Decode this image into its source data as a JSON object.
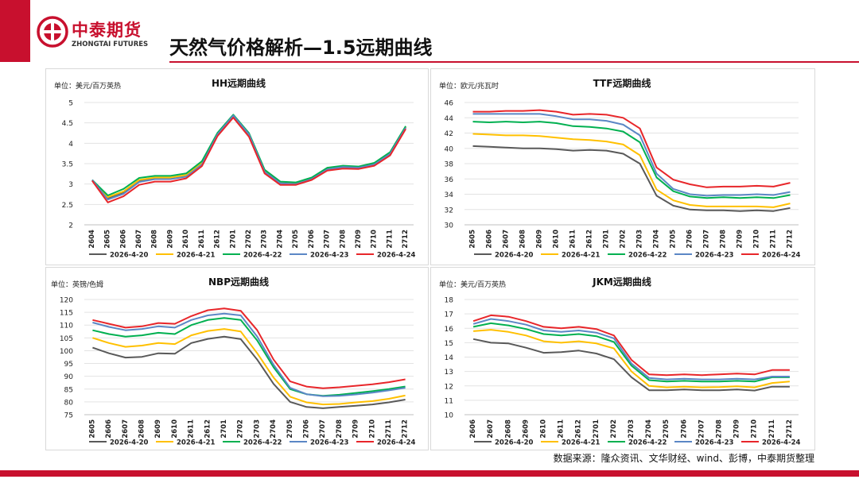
{
  "header": {
    "logo_cn": "中泰期货",
    "logo_en": "ZHONGTAI FUTURES",
    "title": "天然气价格解析—1.5远期曲线"
  },
  "footer": {
    "source": "数据来源：隆众资讯、文华财经、wind、彭博，中泰期货整理"
  },
  "colors": {
    "brand_red": "#c8102e",
    "series": [
      "#595959",
      "#ffc000",
      "#00b050",
      "#5b87c5",
      "#e8262a"
    ]
  },
  "chart_data": [
    {
      "id": "hh",
      "type": "line",
      "title": "HH远期曲线",
      "unit": "单位：美元/百万英热",
      "categories": [
        "2604",
        "2605",
        "2606",
        "2607",
        "2608",
        "2609",
        "2610",
        "2611",
        "2612",
        "2701",
        "2702",
        "2703",
        "2704",
        "2705",
        "2706",
        "2707",
        "2708",
        "2709",
        "2710",
        "2711",
        "2712"
      ],
      "ylim": [
        2,
        5
      ],
      "yticks": [
        2,
        2.5,
        3,
        3.5,
        4,
        4.5,
        5
      ],
      "ytick_labels": [
        "2",
        "2.5",
        "3",
        "3.5",
        "4",
        "4.5",
        "5"
      ],
      "series": [
        {
          "name": "2026-4-20",
          "values": [
            3.1,
            2.65,
            2.8,
            3.08,
            3.15,
            3.15,
            3.2,
            3.5,
            4.2,
            4.65,
            4.2,
            3.3,
            3.02,
            3.0,
            3.12,
            3.35,
            3.42,
            3.4,
            3.5,
            3.75,
            4.4
          ]
        },
        {
          "name": "2026-4-21",
          "values": [
            3.1,
            2.68,
            2.82,
            3.1,
            3.16,
            3.16,
            3.22,
            3.52,
            4.22,
            4.66,
            4.22,
            3.32,
            3.03,
            3.01,
            3.13,
            3.36,
            3.43,
            3.41,
            3.5,
            3.76,
            4.4
          ]
        },
        {
          "name": "2026-4-22",
          "values": [
            3.1,
            2.72,
            2.88,
            3.15,
            3.2,
            3.2,
            3.26,
            3.56,
            4.26,
            4.7,
            4.25,
            3.35,
            3.06,
            3.04,
            3.16,
            3.4,
            3.45,
            3.43,
            3.52,
            3.78,
            4.42
          ]
        },
        {
          "name": "2026-4-23",
          "values": [
            3.1,
            2.62,
            2.76,
            3.05,
            3.12,
            3.12,
            3.18,
            3.48,
            4.22,
            4.68,
            4.22,
            3.3,
            3.02,
            3.0,
            3.12,
            3.36,
            3.42,
            3.4,
            3.48,
            3.74,
            4.38
          ]
        },
        {
          "name": "2026-4-24",
          "values": [
            3.08,
            2.55,
            2.7,
            2.98,
            3.06,
            3.06,
            3.14,
            3.44,
            4.18,
            4.63,
            4.16,
            3.26,
            2.98,
            2.98,
            3.1,
            3.33,
            3.38,
            3.37,
            3.45,
            3.7,
            4.35
          ]
        }
      ]
    },
    {
      "id": "ttf",
      "type": "line",
      "title": "TTF远期曲线",
      "unit": "单位：欧元/兆瓦时",
      "categories": [
        "2605",
        "2606",
        "2607",
        "2608",
        "2609",
        "2610",
        "2611",
        "2612",
        "2701",
        "2702",
        "2703",
        "2704",
        "2705",
        "2706",
        "2707",
        "2708",
        "2709",
        "2710",
        "2711",
        "2712"
      ],
      "ylim": [
        30,
        46
      ],
      "yticks": [
        30,
        32,
        34,
        36,
        38,
        40,
        42,
        44,
        46
      ],
      "ytick_labels": [
        "30",
        "32",
        "34",
        "36",
        "38",
        "40",
        "42",
        "44",
        "46"
      ],
      "series": [
        {
          "name": "2026-4-20",
          "values": [
            40.3,
            40.2,
            40.1,
            40.0,
            40.0,
            39.9,
            39.7,
            39.8,
            39.7,
            39.3,
            38.0,
            33.8,
            32.5,
            32.0,
            31.9,
            31.9,
            31.8,
            31.9,
            31.8,
            32.2
          ]
        },
        {
          "name": "2026-4-21",
          "values": [
            41.9,
            41.8,
            41.7,
            41.7,
            41.6,
            41.4,
            41.2,
            41.1,
            40.9,
            40.5,
            39.1,
            34.6,
            33.2,
            32.6,
            32.4,
            32.4,
            32.4,
            32.4,
            32.3,
            32.8
          ]
        },
        {
          "name": "2026-4-22",
          "values": [
            43.5,
            43.4,
            43.5,
            43.4,
            43.5,
            43.3,
            42.9,
            42.8,
            42.6,
            42.2,
            40.8,
            36.2,
            34.4,
            33.7,
            33.5,
            33.6,
            33.5,
            33.6,
            33.5,
            33.9
          ]
        },
        {
          "name": "2026-4-23",
          "values": [
            44.5,
            44.5,
            44.5,
            44.5,
            44.5,
            44.2,
            43.8,
            43.8,
            43.6,
            43.1,
            41.7,
            36.7,
            34.7,
            34.0,
            33.8,
            33.9,
            33.9,
            34.0,
            33.9,
            34.3
          ]
        },
        {
          "name": "2026-4-24",
          "values": [
            44.8,
            44.8,
            44.9,
            44.9,
            45.0,
            44.8,
            44.4,
            44.5,
            44.4,
            44.0,
            42.6,
            37.5,
            35.9,
            35.3,
            34.9,
            35.0,
            35.0,
            35.1,
            35.0,
            35.5
          ]
        }
      ]
    },
    {
      "id": "nbp",
      "type": "line",
      "title": "NBP远期曲线",
      "unit": "单位：英镑/色姆",
      "categories": [
        "2605",
        "2606",
        "2607",
        "2608",
        "2609",
        "2610",
        "2611",
        "2612",
        "2701",
        "2702",
        "2703",
        "2704",
        "2705",
        "2706",
        "2707",
        "2708",
        "2709",
        "2710",
        "2711",
        "2712"
      ],
      "ylim": [
        75,
        120
      ],
      "yticks": [
        75,
        80,
        85,
        90,
        95,
        100,
        105,
        110,
        115,
        120
      ],
      "ytick_labels": [
        "75",
        "80",
        "85",
        "90",
        "95",
        "100",
        "105",
        "110",
        "115",
        "120"
      ],
      "series": [
        {
          "name": "2026-4-20",
          "values": [
            101.2,
            99.0,
            97.3,
            97.6,
            99.0,
            98.8,
            103.0,
            104.6,
            105.5,
            104.5,
            96.5,
            87.0,
            80.0,
            78.0,
            77.5,
            78.0,
            78.5,
            79.0,
            79.8,
            80.9
          ]
        },
        {
          "name": "2026-4-21",
          "values": [
            105.0,
            103.0,
            101.5,
            102.0,
            103.0,
            102.6,
            106.0,
            107.7,
            108.5,
            107.5,
            99.0,
            89.5,
            82.0,
            79.8,
            79.0,
            79.2,
            79.8,
            80.3,
            81.2,
            82.5
          ]
        },
        {
          "name": "2026-4-22",
          "values": [
            108.0,
            106.5,
            105.5,
            106.0,
            107.0,
            106.5,
            110.0,
            112.0,
            112.8,
            112.0,
            104.0,
            93.5,
            85.0,
            83.0,
            82.4,
            82.8,
            83.5,
            84.2,
            85.0,
            86.0
          ]
        },
        {
          "name": "2026-4-23",
          "values": [
            111.0,
            109.3,
            108.0,
            108.5,
            109.5,
            109.0,
            112.0,
            113.8,
            114.5,
            113.8,
            105.5,
            94.5,
            85.5,
            83.0,
            82.2,
            82.4,
            82.9,
            83.6,
            84.5,
            85.5
          ]
        },
        {
          "name": "2026-4-24",
          "values": [
            112.0,
            110.5,
            109.0,
            109.5,
            110.8,
            110.5,
            113.5,
            115.8,
            116.5,
            115.6,
            108.0,
            96.5,
            88.0,
            86.0,
            85.3,
            85.7,
            86.3,
            86.9,
            87.7,
            88.8
          ]
        }
      ]
    },
    {
      "id": "jkm",
      "type": "line",
      "title": "JKM远期曲线",
      "unit": "单位：美元/百万英热",
      "categories": [
        "2606",
        "2607",
        "2608",
        "2609",
        "2610",
        "2611",
        "2612",
        "2701",
        "2702",
        "2703",
        "2704",
        "2705",
        "2706",
        "2707",
        "2708",
        "2709",
        "2710",
        "2711",
        "2712"
      ],
      "ylim": [
        10,
        18
      ],
      "yticks": [
        10,
        11,
        12,
        13,
        14,
        15,
        16,
        17,
        18
      ],
      "ytick_labels": [
        "10",
        "11",
        "12",
        "13",
        "14",
        "15",
        "16",
        "17",
        "18"
      ],
      "series": [
        {
          "name": "2026-4-20",
          "values": [
            15.25,
            15.0,
            14.95,
            14.65,
            14.3,
            14.35,
            14.45,
            14.25,
            13.85,
            12.6,
            11.7,
            11.7,
            11.75,
            11.7,
            11.7,
            11.75,
            11.68,
            11.95,
            11.95
          ]
        },
        {
          "name": "2026-4-21",
          "values": [
            15.8,
            15.9,
            15.75,
            15.5,
            15.1,
            15.0,
            15.1,
            14.95,
            14.6,
            13.0,
            12.0,
            11.9,
            11.95,
            11.9,
            11.92,
            11.97,
            11.9,
            12.2,
            12.3
          ]
        },
        {
          "name": "2026-4-22",
          "values": [
            16.1,
            16.35,
            16.2,
            15.95,
            15.6,
            15.5,
            15.6,
            15.45,
            15.05,
            13.4,
            12.4,
            12.3,
            12.35,
            12.3,
            12.3,
            12.35,
            12.3,
            12.6,
            12.6
          ]
        },
        {
          "name": "2026-4-23",
          "values": [
            16.3,
            16.65,
            16.5,
            16.25,
            15.85,
            15.75,
            15.85,
            15.7,
            15.3,
            13.55,
            12.55,
            12.45,
            12.5,
            12.45,
            12.45,
            12.5,
            12.45,
            12.65,
            12.65
          ]
        },
        {
          "name": "2026-4-24",
          "values": [
            16.5,
            16.9,
            16.8,
            16.5,
            16.1,
            16.0,
            16.1,
            15.95,
            15.5,
            13.8,
            12.8,
            12.75,
            12.8,
            12.75,
            12.8,
            12.85,
            12.8,
            13.1,
            13.1
          ]
        }
      ]
    }
  ]
}
